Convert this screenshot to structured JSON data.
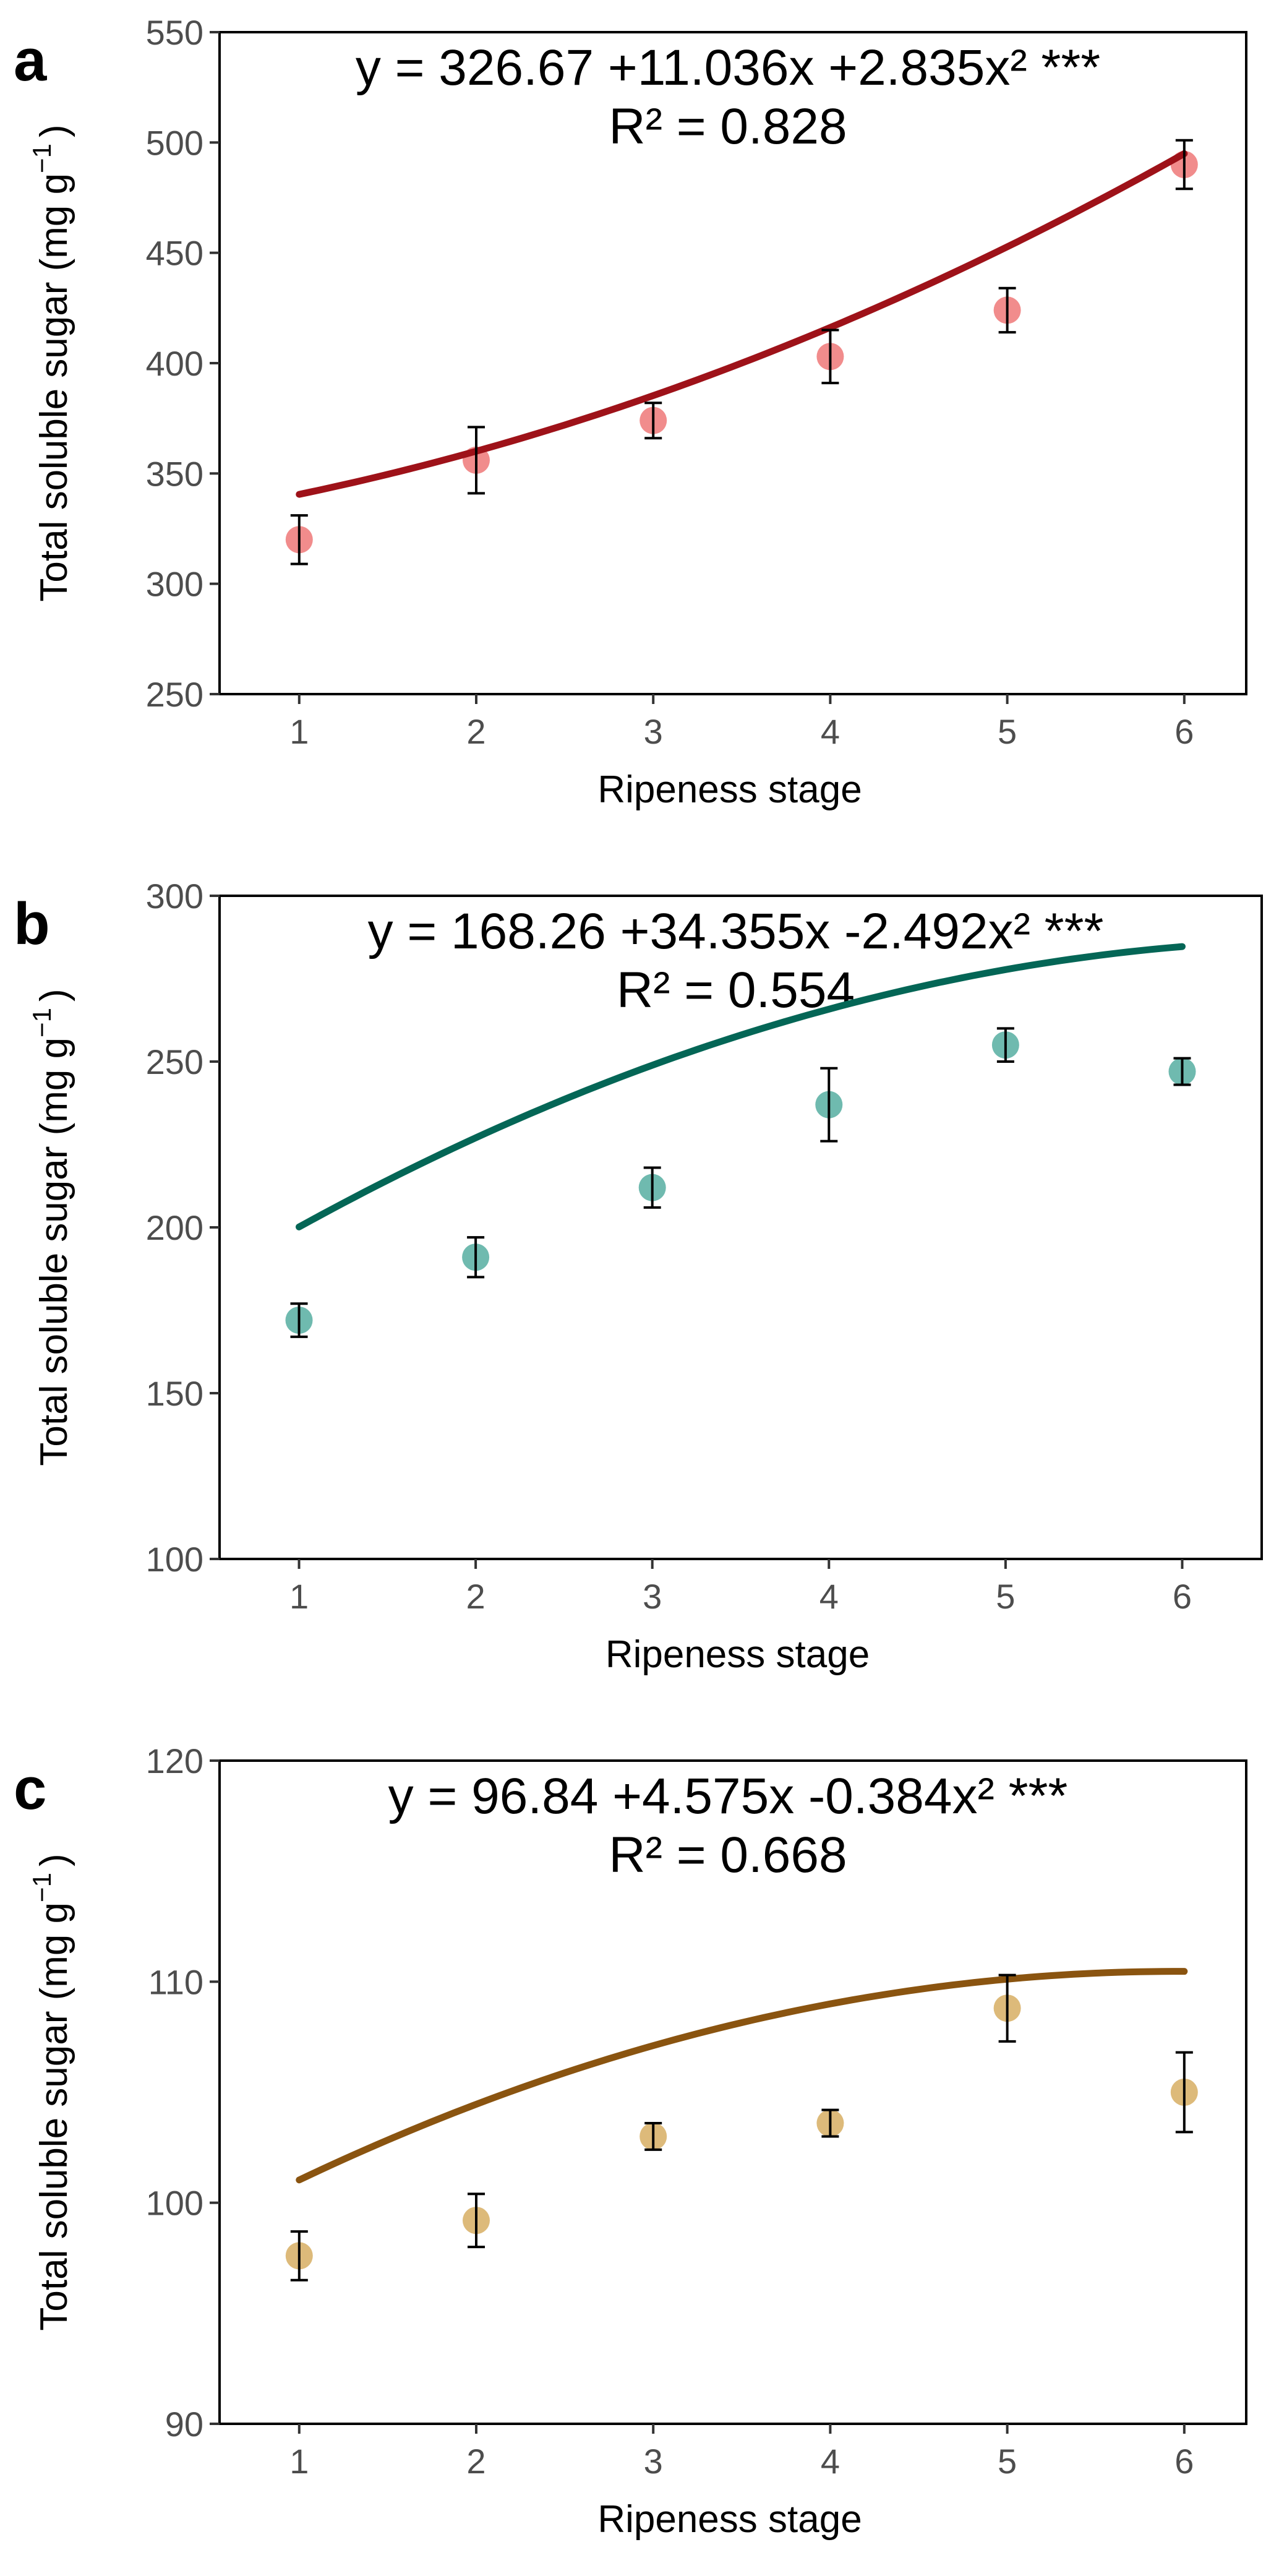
{
  "chart_data": [
    {
      "type": "scatter",
      "panel": "a",
      "x": [
        1,
        2,
        3,
        4,
        5,
        6
      ],
      "y": [
        320,
        356,
        374,
        403,
        424,
        490
      ],
      "err": [
        11,
        15,
        8,
        12,
        10,
        11
      ],
      "fit": [
        326.67,
        11.036,
        2.835
      ],
      "equation": "y = 326.67 +11.036x +2.835x² ***",
      "r2": "R² = 0.828",
      "xlabel": "Ripeness stage",
      "ylabel": "Total soluble sugar (mg g",
      "ylabel_sup": "−1",
      "ylabel_close": ")",
      "xlim": [
        0.55,
        6.35
      ],
      "ylim": [
        250,
        550
      ],
      "xticks": [
        1,
        2,
        3,
        4,
        5,
        6
      ],
      "yticks": [
        250,
        300,
        350,
        400,
        450,
        500,
        550
      ],
      "point_color": "#F08080",
      "line_color": "#9E1219"
    },
    {
      "type": "scatter",
      "panel": "b",
      "x": [
        1,
        2,
        3,
        4,
        5,
        6
      ],
      "y": [
        172,
        191,
        212,
        237,
        255,
        247
      ],
      "err": [
        5,
        6,
        6,
        11,
        5,
        4
      ],
      "fit": [
        168.26,
        34.355,
        -2.492
      ],
      "equation": "y = 168.26 +34.355x -2.492x² ***",
      "r2": "R² = 0.554",
      "xlabel": "Ripeness stage",
      "ylabel": "Total soluble sugar (mg g",
      "ylabel_sup": "−1",
      "ylabel_close": ")",
      "xlim": [
        0.55,
        6.45
      ],
      "ylim": [
        100,
        300
      ],
      "xticks": [
        1,
        2,
        3,
        4,
        5,
        6
      ],
      "yticks": [
        100,
        150,
        200,
        250,
        300
      ],
      "point_color": "#5FB3A6",
      "line_color": "#046656"
    },
    {
      "type": "scatter",
      "panel": "c",
      "x": [
        1,
        2,
        3,
        4,
        5,
        6
      ],
      "y": [
        97.6,
        99.2,
        103.0,
        103.6,
        108.8,
        105.0
      ],
      "err": [
        1.1,
        1.2,
        0.6,
        0.6,
        1.5,
        1.8
      ],
      "fit": [
        96.84,
        4.575,
        -0.384
      ],
      "equation": "y = 96.84 +4.575x -0.384x² ***",
      "r2": "R² = 0.668",
      "xlabel": "Ripeness stage",
      "ylabel": "Total soluble sugar (mg g",
      "ylabel_sup": "−1",
      "ylabel_close": ")",
      "xlim": [
        0.55,
        6.35
      ],
      "ylim": [
        90,
        120
      ],
      "xticks": [
        1,
        2,
        3,
        4,
        5,
        6
      ],
      "yticks": [
        90,
        100,
        110,
        120
      ],
      "point_color": "#D9B36B",
      "line_color": "#8A5410"
    }
  ]
}
